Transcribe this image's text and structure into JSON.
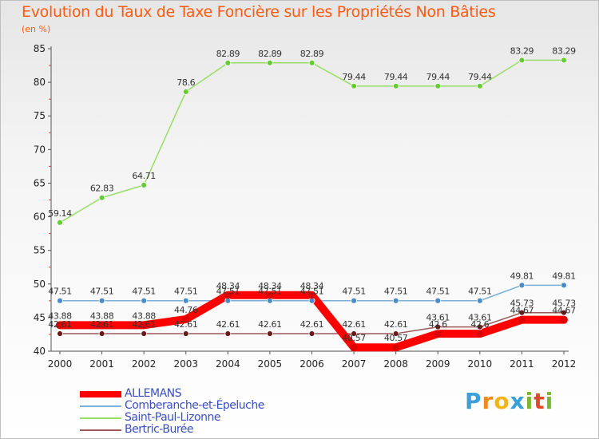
{
  "header": {
    "title": "Evolution du Taux de Taxe Foncière sur les Propriétés Non Bâties",
    "unit": "(en %)"
  },
  "brand": {
    "letters": [
      "P",
      "r",
      "o",
      "x",
      "i",
      "t",
      "i"
    ],
    "colors": [
      "#3aa0d8",
      "#f08a1c",
      "#f5b31a",
      "#3aa0d8",
      "#7ab82e",
      "#e04a2a",
      "#7ab82e"
    ]
  },
  "chart_data": {
    "type": "line",
    "title": "Evolution du Taux de Taxe Foncière sur les Propriétés Non Bâties",
    "ylabel": "(en %)",
    "xlabel": "",
    "ylim": [
      40,
      85
    ],
    "yticks": [
      40,
      45,
      50,
      55,
      60,
      65,
      70,
      75,
      80,
      85
    ],
    "grid": false,
    "legend": "bottom-left",
    "x": [
      "2000",
      "2001",
      "2002",
      "2003",
      "2004",
      "2005",
      "2006",
      "2007",
      "2008",
      "2009",
      "2010",
      "2011",
      "2012"
    ],
    "series": [
      {
        "name": "Saint-Paul-Lizonne",
        "color": "#99dd66",
        "marker": "#66cc33",
        "thick": false,
        "values": [
          59.14,
          62.83,
          64.71,
          78.6,
          82.89,
          82.89,
          82.89,
          79.44,
          79.44,
          79.44,
          79.44,
          83.29,
          83.29
        ],
        "labels": [
          "59.14",
          "62.83",
          "64.71",
          "78.6",
          "82.89",
          "82.89",
          "82.89",
          "79.44",
          "79.44",
          "79.44",
          "79.44",
          "83.29",
          "83.29"
        ]
      },
      {
        "name": "Comberanche-et-Épeluche",
        "color": "#7ab0d8",
        "marker": "#4a8cc8",
        "thick": false,
        "values": [
          47.51,
          47.51,
          47.51,
          47.51,
          47.51,
          47.51,
          47.51,
          47.51,
          47.51,
          47.51,
          47.51,
          49.81,
          49.81
        ],
        "labels": [
          "47.51",
          "47.51",
          "47.51",
          "47.51",
          "47.51",
          "47.51",
          "47.51",
          "47.51",
          "47.51",
          "47.51",
          "47.51",
          "49.81",
          "49.81"
        ]
      },
      {
        "name": "Bertric-Burée",
        "color": "#9a5a5a",
        "marker": "#6a1a1a",
        "thick": false,
        "values": [
          42.61,
          42.61,
          42.61,
          42.61,
          42.61,
          42.61,
          42.61,
          42.61,
          42.61,
          43.61,
          43.61,
          45.73,
          45.73
        ],
        "labels": [
          "42.61",
          "42.61",
          "42.61",
          "42.61",
          "42.61",
          "42.61",
          "42.61",
          "42.61",
          "42.61",
          "43.61",
          "43.61",
          "45.73",
          "45.73"
        ]
      },
      {
        "name": "ALLEMANS",
        "color": "#ff0000",
        "marker": "#dd0000",
        "thick": true,
        "values": [
          43.88,
          43.88,
          43.88,
          44.76,
          48.34,
          48.34,
          48.34,
          40.57,
          40.57,
          42.6,
          42.6,
          44.67,
          44.67
        ],
        "labels": [
          "43.88",
          "43.88",
          "43.88",
          "44.76",
          "48.34",
          "48.34",
          "48.34",
          "40.57",
          "40.57",
          "42.6",
          "42.6",
          "44.67",
          "44.67"
        ]
      }
    ],
    "legend_order": [
      "ALLEMANS",
      "Comberanche-et-Épeluche",
      "Saint-Paul-Lizonne",
      "Bertric-Burée"
    ]
  }
}
